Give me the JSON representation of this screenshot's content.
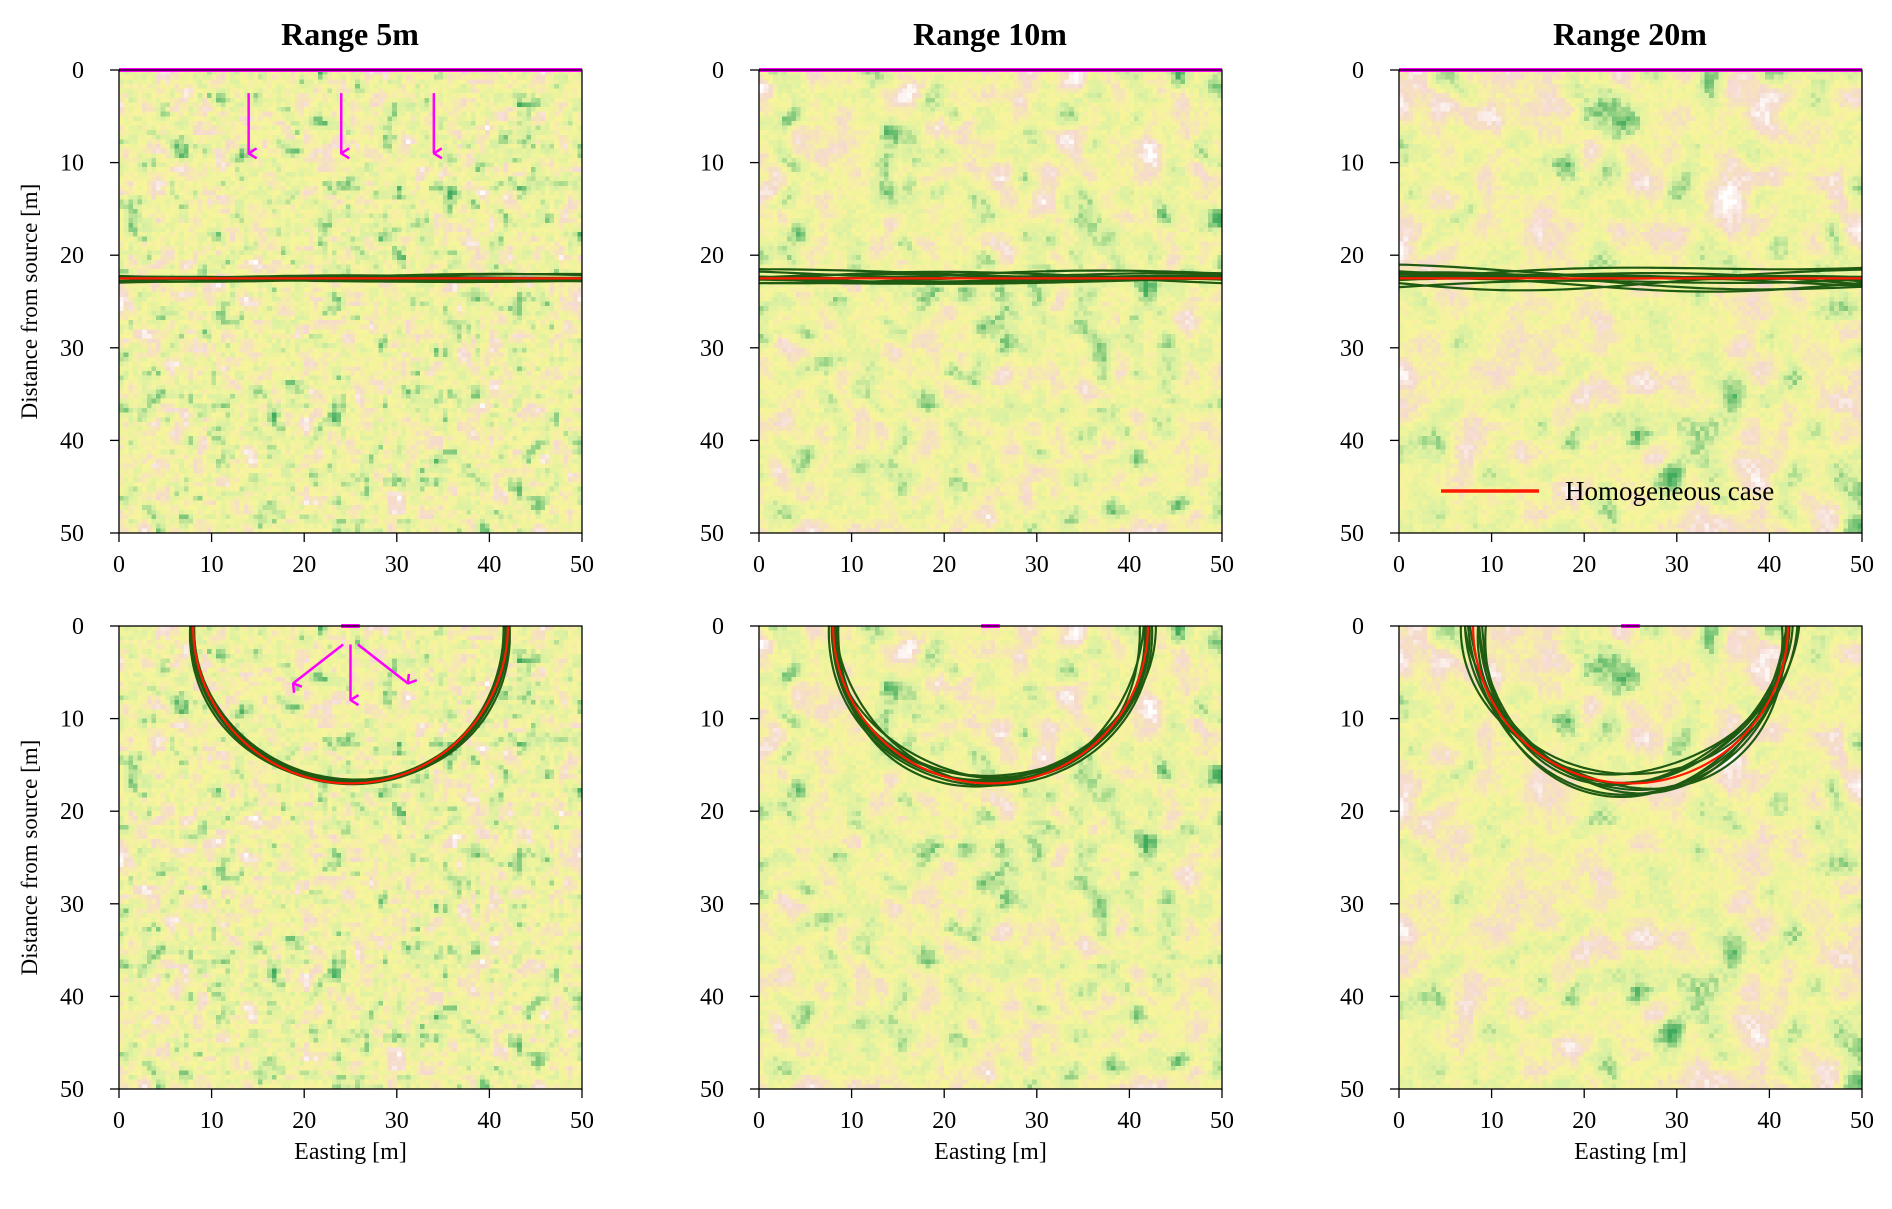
{
  "colors": {
    "homogeneous": "#ff1a00",
    "realizations": "#1f5a12",
    "source": "#ff00ff",
    "field_low": "#d9f0a3",
    "field_green": "#41ab5d",
    "field_yellow": "#f7f59a",
    "field_pink": "#f5d9cf",
    "field_white": "#ffffff"
  },
  "column_titles": [
    "Range 5m",
    "Range 10m",
    "Range 20m"
  ],
  "legend": {
    "label": "Homogeneous case",
    "location": "lower-right of top-right panel"
  },
  "chart_data": [
    {
      "type": "line",
      "panel": "Range 5m, plane-wave source",
      "title": "Range 5m",
      "xlabel": "",
      "ylabel": "Distance from source [m]",
      "xlim": [
        0,
        50
      ],
      "ylim": [
        50,
        0
      ],
      "xticks": [
        0,
        10,
        20,
        30,
        40,
        50
      ],
      "yticks": [
        0,
        10,
        20,
        30,
        40,
        50
      ],
      "source": {
        "type": "line",
        "x": [
          0,
          50
        ],
        "y": 0
      },
      "arrows": [
        {
          "x": 14,
          "dir": "down"
        },
        {
          "x": 24,
          "dir": "down"
        },
        {
          "x": 34,
          "dir": "down"
        }
      ],
      "homogeneous": {
        "shape": "front",
        "y": 22.5
      },
      "realization_count": 10,
      "realization_spread": 0.5,
      "field_correlation_range": 5
    },
    {
      "type": "line",
      "panel": "Range 10m, plane-wave source",
      "title": "Range 10m",
      "xlabel": "",
      "ylabel": "",
      "xlim": [
        0,
        50
      ],
      "ylim": [
        50,
        0
      ],
      "xticks": [
        0,
        10,
        20,
        30,
        40,
        50
      ],
      "yticks": [
        0,
        10,
        20,
        30,
        40,
        50
      ],
      "source": {
        "type": "line",
        "x": [
          0,
          50
        ],
        "y": 0
      },
      "homogeneous": {
        "shape": "front",
        "y": 22.5
      },
      "realization_count": 10,
      "realization_spread": 0.8,
      "field_correlation_range": 10
    },
    {
      "type": "line",
      "panel": "Range 20m, plane-wave source",
      "title": "Range 20m",
      "xlabel": "",
      "ylabel": "",
      "xlim": [
        0,
        50
      ],
      "ylim": [
        50,
        0
      ],
      "xticks": [
        0,
        10,
        20,
        30,
        40,
        50
      ],
      "yticks": [
        0,
        10,
        20,
        30,
        40,
        50
      ],
      "source": {
        "type": "line",
        "x": [
          0,
          50
        ],
        "y": 0
      },
      "homogeneous": {
        "shape": "front",
        "y": 22.5
      },
      "realization_count": 10,
      "realization_spread": 1.4,
      "field_correlation_range": 20,
      "legend": "Homogeneous case"
    },
    {
      "type": "line",
      "panel": "Range 5m, point source",
      "title": "",
      "xlabel": "Easting [m]",
      "ylabel": "Distance from source [m]",
      "xlim": [
        0,
        50
      ],
      "ylim": [
        50,
        0
      ],
      "xticks": [
        0,
        10,
        20,
        30,
        40,
        50
      ],
      "yticks": [
        0,
        10,
        20,
        30,
        40,
        50
      ],
      "source": {
        "type": "point",
        "x": [
          24,
          26
        ],
        "y": 0
      },
      "arrows": [
        {
          "x": 25,
          "dir": "down-left"
        },
        {
          "x": 25,
          "dir": "down"
        },
        {
          "x": 25,
          "dir": "down-right"
        }
      ],
      "homogeneous": {
        "shape": "circle",
        "cx": 25,
        "cy": 0,
        "r": 17
      },
      "realization_count": 10,
      "realization_spread": 0.5,
      "field_correlation_range": 5
    },
    {
      "type": "line",
      "panel": "Range 10m, point source",
      "title": "",
      "xlabel": "Easting [m]",
      "ylabel": "",
      "xlim": [
        0,
        50
      ],
      "ylim": [
        50,
        0
      ],
      "xticks": [
        0,
        10,
        20,
        30,
        40,
        50
      ],
      "yticks": [
        0,
        10,
        20,
        30,
        40,
        50
      ],
      "source": {
        "type": "point",
        "x": [
          24,
          26
        ],
        "y": 0
      },
      "homogeneous": {
        "shape": "circle",
        "cx": 25,
        "cy": 0,
        "r": 17
      },
      "realization_count": 10,
      "realization_spread": 0.8,
      "field_correlation_range": 10
    },
    {
      "type": "line",
      "panel": "Range 20m, point source",
      "title": "",
      "xlabel": "Easting [m]",
      "ylabel": "",
      "xlim": [
        0,
        50
      ],
      "ylim": [
        50,
        0
      ],
      "xticks": [
        0,
        10,
        20,
        30,
        40,
        50
      ],
      "yticks": [
        0,
        10,
        20,
        30,
        40,
        50
      ],
      "source": {
        "type": "point",
        "x": [
          24,
          26
        ],
        "y": 0
      },
      "homogeneous": {
        "shape": "circle",
        "cx": 25,
        "cy": 0,
        "r": 17
      },
      "realization_count": 10,
      "realization_spread": 1.3,
      "field_correlation_range": 20
    }
  ]
}
